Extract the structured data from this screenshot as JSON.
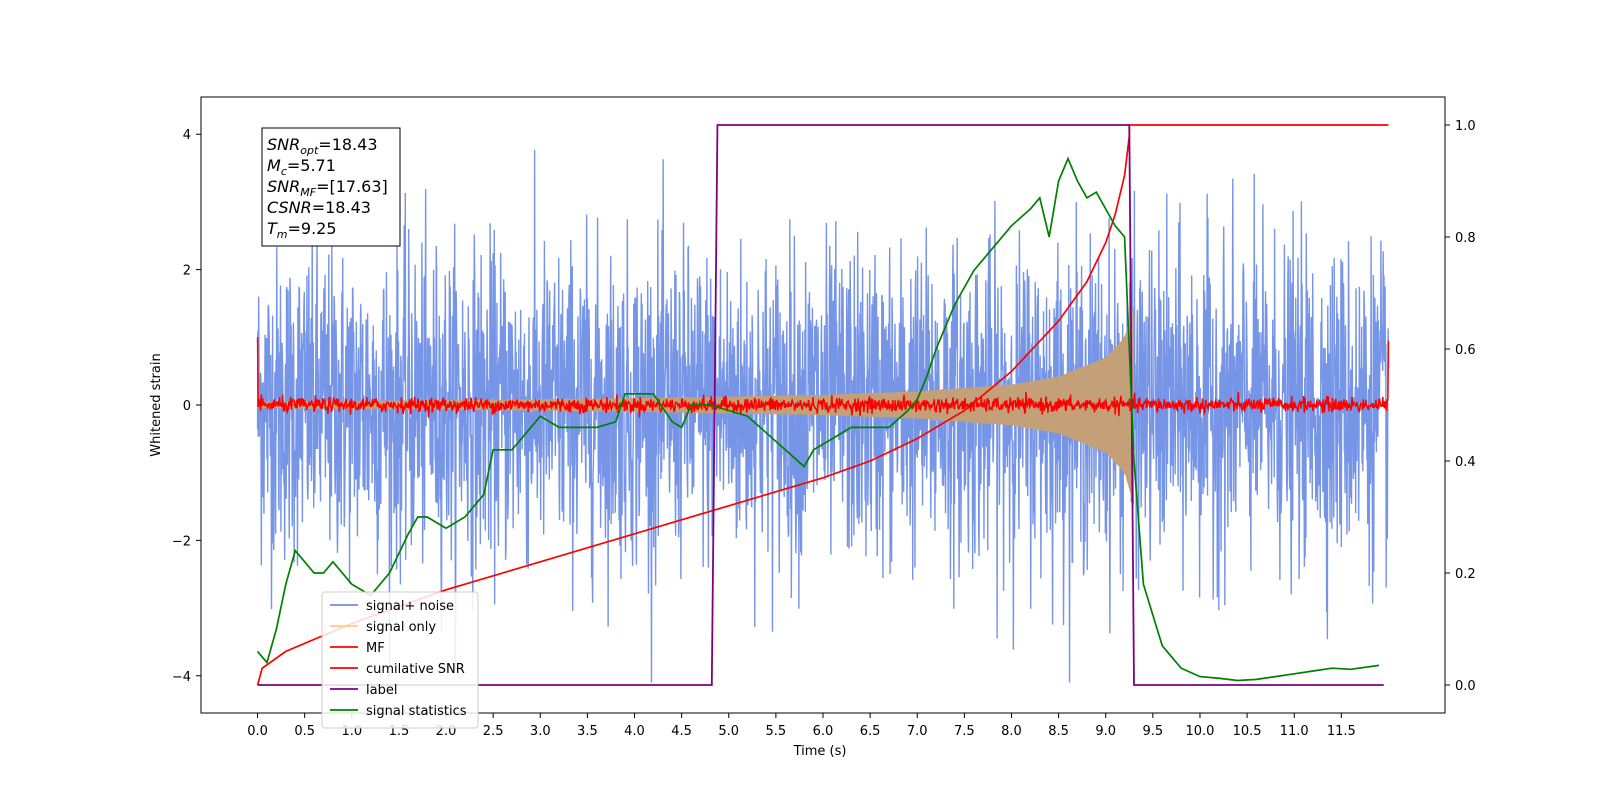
{
  "chart_data": {
    "type": "line",
    "title": "",
    "xlabel": "Time (s)",
    "ylabel": "Whitened strain",
    "ylabel_right": "",
    "xlim": [
      -0.6,
      12.6
    ],
    "ylim": [
      -4.55,
      4.55
    ],
    "ylim_right": [
      -0.05,
      1.05
    ],
    "x_ticks": [
      "0.0",
      "0.5",
      "1.0",
      "1.5",
      "2.0",
      "2.5",
      "3.0",
      "3.5",
      "4.0",
      "4.5",
      "5.0",
      "5.5",
      "6.0",
      "6.5",
      "7.0",
      "7.5",
      "8.0",
      "8.5",
      "9.0",
      "9.5",
      "10.0",
      "10.5",
      "11.0",
      "11.5"
    ],
    "y_ticks": [
      "4",
      "2",
      "0",
      "−2",
      "−4"
    ],
    "y_ticks_right": [
      "1.0",
      "0.8",
      "0.6",
      "0.4",
      "0.2",
      "0.0"
    ],
    "grid": false,
    "legend": {
      "placement": "lower-left",
      "entries": [
        {
          "label": "signal+ noise",
          "color": "#6f8fe6"
        },
        {
          "label": "signal only",
          "color": "#ffcc80"
        },
        {
          "label": "MF",
          "color": "#ff0000"
        },
        {
          "label": "cumilative SNR",
          "color": "#ff0000"
        },
        {
          "label": "label",
          "color": "#800080"
        },
        {
          "label": "signal statistics",
          "color": "#008000"
        }
      ]
    },
    "annotation": {
      "snr_opt": "=18.43",
      "mc": "=5.71",
      "snr_mf": "=[17.63]",
      "csnr": "=18.43",
      "tm": "=9.25"
    },
    "series": [
      {
        "name": "signal+ noise",
        "axis": "left",
        "color": "#6f8fe6",
        "description_values": {
          "t_start": 0.0,
          "t_end": 12.0,
          "typical_range": [
            -2.0,
            2.0
          ],
          "max": 4.1,
          "min": -4.1
        }
      },
      {
        "name": "signal only",
        "axis": "left",
        "color": "#c4a079",
        "envelope": {
          "t_start": 0.0,
          "t_end": 9.3,
          "x": [
            0.0,
            2.0,
            4.0,
            6.0,
            7.0,
            8.0,
            8.5,
            9.0,
            9.2,
            9.3
          ],
          "amplitude": [
            0.05,
            0.07,
            0.1,
            0.15,
            0.2,
            0.3,
            0.42,
            0.7,
            1.0,
            1.5
          ]
        }
      },
      {
        "name": "MF",
        "axis": "left",
        "color": "#ff0000",
        "description_values": {
          "baseline": 0.0,
          "noise_amplitude": 0.1,
          "edge_values": [
            1.0,
            0.95
          ]
        }
      },
      {
        "name": "cumilative SNR",
        "axis": "right",
        "color": "#ff0000",
        "x": [
          0.0,
          0.05,
          0.3,
          1.0,
          2.0,
          3.0,
          4.0,
          5.0,
          6.0,
          6.5,
          7.0,
          7.5,
          8.0,
          8.5,
          8.8,
          9.0,
          9.1,
          9.2,
          9.25,
          9.25,
          12.0
        ],
        "values": [
          0.0,
          0.03,
          0.06,
          0.11,
          0.17,
          0.22,
          0.27,
          0.32,
          0.37,
          0.4,
          0.44,
          0.49,
          0.56,
          0.65,
          0.72,
          0.79,
          0.84,
          0.91,
          0.98,
          1.0,
          1.0
        ]
      },
      {
        "name": "label",
        "axis": "right",
        "color": "#800080",
        "x": [
          0.0,
          4.82,
          4.88,
          9.25,
          9.3,
          11.95
        ],
        "values": [
          0.0,
          0.0,
          1.0,
          1.0,
          0.0,
          0.0
        ]
      },
      {
        "name": "signal statistics",
        "axis": "right",
        "color": "#008000",
        "x": [
          0.0,
          0.1,
          0.2,
          0.3,
          0.4,
          0.5,
          0.6,
          0.7,
          0.8,
          1.0,
          1.2,
          1.4,
          1.6,
          1.7,
          1.8,
          2.0,
          2.2,
          2.4,
          2.5,
          2.7,
          2.9,
          3.0,
          3.2,
          3.4,
          3.6,
          3.8,
          3.9,
          4.0,
          4.2,
          4.4,
          4.5,
          4.6,
          4.8,
          5.0,
          5.2,
          5.4,
          5.6,
          5.8,
          5.9,
          6.1,
          6.3,
          6.5,
          6.7,
          6.9,
          7.0,
          7.1,
          7.2,
          7.4,
          7.6,
          7.8,
          8.0,
          8.2,
          8.3,
          8.4,
          8.5,
          8.6,
          8.7,
          8.8,
          8.9,
          9.0,
          9.1,
          9.2,
          9.3,
          9.4,
          9.6,
          9.8,
          10.0,
          10.2,
          10.4,
          10.6,
          10.8,
          11.0,
          11.2,
          11.4,
          11.6,
          11.9
        ],
        "values": [
          0.06,
          0.04,
          0.1,
          0.18,
          0.24,
          0.22,
          0.2,
          0.2,
          0.22,
          0.18,
          0.16,
          0.2,
          0.27,
          0.3,
          0.3,
          0.28,
          0.3,
          0.34,
          0.42,
          0.42,
          0.46,
          0.48,
          0.46,
          0.46,
          0.46,
          0.47,
          0.52,
          0.52,
          0.52,
          0.47,
          0.46,
          0.5,
          0.5,
          0.49,
          0.48,
          0.45,
          0.42,
          0.39,
          0.42,
          0.44,
          0.46,
          0.46,
          0.46,
          0.49,
          0.51,
          0.55,
          0.6,
          0.68,
          0.74,
          0.78,
          0.82,
          0.85,
          0.87,
          0.8,
          0.9,
          0.94,
          0.9,
          0.87,
          0.88,
          0.85,
          0.82,
          0.8,
          0.4,
          0.18,
          0.07,
          0.03,
          0.015,
          0.012,
          0.008,
          0.01,
          0.015,
          0.02,
          0.025,
          0.03,
          0.028,
          0.035
        ]
      }
    ]
  }
}
